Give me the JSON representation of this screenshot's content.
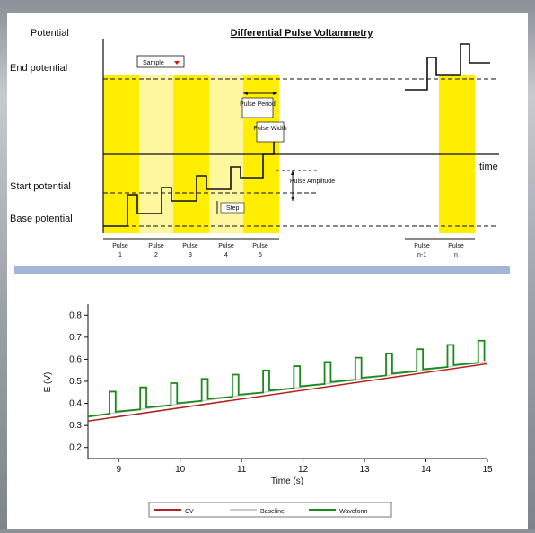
{
  "diagram": {
    "title": "Differential Pulse Voltammetry",
    "y_label": "Potential",
    "x_label": "time",
    "levels": {
      "end": "End potential",
      "start": "Start potential",
      "base": "Base potential"
    },
    "annotations": {
      "sample": "Sample",
      "pulse_period": "Pulse Period",
      "pulse_width": "Pulse Width",
      "pulse_amplitude": "Pulse Amplitude",
      "step": "Step"
    },
    "pulses": [
      {
        "name": "Pulse",
        "num": "1"
      },
      {
        "name": "Pulse",
        "num": "2"
      },
      {
        "name": "Pulse",
        "num": "3"
      },
      {
        "name": "Pulse",
        "num": "4"
      },
      {
        "name": "Pulse",
        "num": "5"
      }
    ],
    "end_pulses": [
      {
        "name": "Pulse",
        "num": "n-1"
      },
      {
        "name": "Pulse",
        "num": "n"
      }
    ],
    "colors": {
      "yellow": "#ffee00",
      "yellow_light": "#fff7a0",
      "divider": "#a4b6d8"
    }
  },
  "chart_data": {
    "type": "line",
    "xlabel": "Time (s)",
    "ylabel": "E (V)",
    "xlim": [
      8.5,
      15
    ],
    "ylim": [
      0.15,
      0.85
    ],
    "x_ticks": [
      "9",
      "10",
      "11",
      "12",
      "13",
      "14",
      "15"
    ],
    "y_ticks": [
      "0.2",
      "0.3",
      "0.4",
      "0.5",
      "0.6",
      "0.7",
      "0.8"
    ],
    "legend_position": "bottom",
    "pulse_period_s": 0.5,
    "pulse_width_s": 0.1,
    "series": [
      {
        "name": "CV",
        "color": "#b22222",
        "x": [
          8.5,
          15
        ],
        "y": [
          0.32,
          0.58
        ]
      },
      {
        "name": "Baseline",
        "color": "#cccccc",
        "x": [
          8.5,
          15
        ],
        "y": [
          0.34,
          0.59
        ]
      },
      {
        "name": "Waveform",
        "color": "#1a8a1a",
        "base_start": 0.34,
        "base_end": 0.59,
        "pulse_amplitude": 0.1
      }
    ]
  }
}
